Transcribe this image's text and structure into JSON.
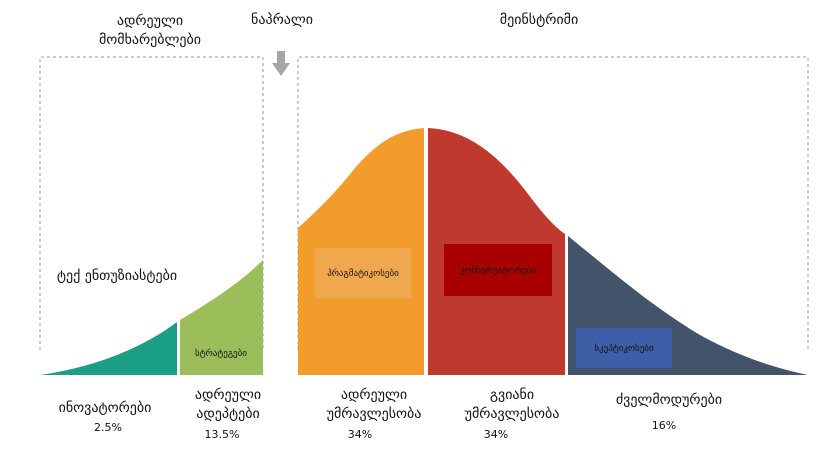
{
  "header": {
    "early_market": "ადრეული მომხარებლები",
    "chasm": "ნაპრალი",
    "mainstream": "მეინსტრიმი"
  },
  "tech_enthusiasts": "ტექ ენთუზიასტები",
  "segments": [
    {
      "name": "ინოვატორები",
      "pct": "2.5%",
      "color": "#1a9e86",
      "inner_label": ""
    },
    {
      "name": "ადრეული ადეპტები",
      "pct": "13.5%",
      "color": "#9bbd5a",
      "inner_label": "სტრატეგები"
    },
    {
      "name": "ადრეული უმრავლესობა",
      "pct": "34%",
      "color": "#f29c2b",
      "inner_label": "პრაგმატიკოსები"
    },
    {
      "name": "გვიანი უმრავლესობა",
      "pct": "34%",
      "color": "#c0392f",
      "inner_label": "კონსერვატორები"
    },
    {
      "name": "ძველმოდურები",
      "pct": "16%",
      "color": "#435369",
      "inner_label": "სკეპტიკოსები"
    }
  ],
  "colors": {
    "pragmatists_box": "#f0a84e",
    "conservatives_box": "#a80000",
    "skeptics_box": "#3e5fa8",
    "frame": "#999999",
    "arrow": "#a6a6a6"
  }
}
